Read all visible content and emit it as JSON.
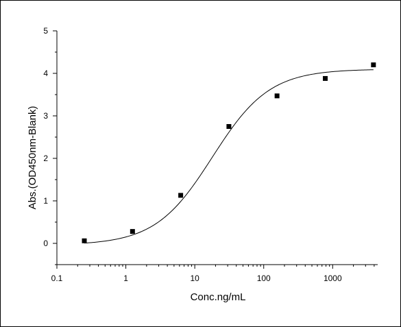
{
  "chart_data": {
    "type": "scatter",
    "title": "",
    "xlabel": "Conc.ng/mL",
    "ylabel": "Abs.(OD450nm-Blank)",
    "x_scale": "log",
    "xlim": [
      0.1,
      4500
    ],
    "ylim": [
      -0.5,
      5
    ],
    "x_ticks": [
      {
        "value": 0.1,
        "label": "0.1"
      },
      {
        "value": 1,
        "label": "1"
      },
      {
        "value": 10,
        "label": "10"
      },
      {
        "value": 100,
        "label": "100"
      },
      {
        "value": 1000,
        "label": "1000"
      }
    ],
    "y_ticks": [
      {
        "value": 0,
        "label": "0"
      },
      {
        "value": 1,
        "label": "1"
      },
      {
        "value": 2,
        "label": "2"
      },
      {
        "value": 3,
        "label": "3"
      },
      {
        "value": 4,
        "label": "4"
      },
      {
        "value": 5,
        "label": "5"
      }
    ],
    "grid": false,
    "series": [
      {
        "marker": "square",
        "color": "#000000",
        "points": [
          {
            "x": 0.25,
            "y": 0.06
          },
          {
            "x": 1.25,
            "y": 0.28
          },
          {
            "x": 6.25,
            "y": 1.13
          },
          {
            "x": 31.25,
            "y": 2.75
          },
          {
            "x": 156,
            "y": 3.47
          },
          {
            "x": 781,
            "y": 3.88
          },
          {
            "x": 3906,
            "y": 4.2
          }
        ]
      }
    ],
    "fit_curve": {
      "model": "4PL",
      "bottom": -0.04,
      "top": 4.1,
      "ec50": 18,
      "hill": 1.05,
      "x_range": [
        0.25,
        3906
      ],
      "color": "#000000"
    }
  }
}
